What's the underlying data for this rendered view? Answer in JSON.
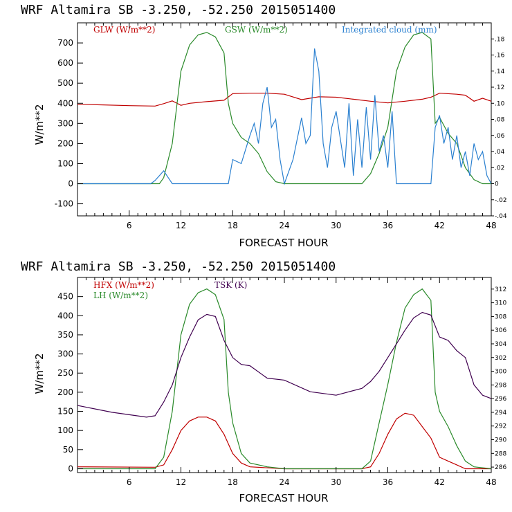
{
  "colors": {
    "red": "#c00000",
    "green": "#2a8a2a",
    "blue": "#2a80d0",
    "purple": "#400050",
    "axis": "#000000"
  },
  "chart_data": [
    {
      "type": "line",
      "title": "WRF  Altamira  SB  -3.250, -52.250  2015051400",
      "xlabel": "FORECAST HOUR",
      "ylabel": "W/m**2",
      "xlim": [
        0,
        48
      ],
      "ylim": [
        -160,
        800
      ],
      "x_ticks": [
        6,
        12,
        18,
        24,
        30,
        36,
        42,
        48
      ],
      "y_ticks": [
        -100,
        0,
        100,
        200,
        300,
        400,
        500,
        600,
        700
      ],
      "y2lim": [
        -0.04,
        0.2
      ],
      "y2_ticks": [
        -0.04,
        -0.02,
        0,
        0.02,
        0.04,
        0.06,
        0.08,
        0.1,
        0.12,
        0.14,
        0.16,
        0.18
      ],
      "y2_tick_labels": [
        "-.04",
        "-.02",
        "0",
        ".02",
        ".04",
        ".06",
        ".08",
        ".10",
        ".12",
        ".14",
        ".16",
        ".18"
      ],
      "series": [
        {
          "name": "GLW (W/m**2)",
          "axis": "left",
          "color": "#c00000",
          "x": [
            0,
            3,
            6,
            9,
            10,
            11,
            12,
            13,
            15,
            17,
            18,
            20,
            22,
            24,
            26,
            28,
            30,
            32,
            34,
            36,
            38,
            40,
            41,
            42,
            44,
            45,
            46,
            47,
            48
          ],
          "y": [
            395,
            392,
            388,
            386,
            398,
            412,
            390,
            400,
            408,
            415,
            448,
            450,
            450,
            445,
            418,
            432,
            430,
            420,
            410,
            402,
            410,
            420,
            430,
            450,
            445,
            440,
            410,
            425,
            410
          ]
        },
        {
          "name": "GSW (W/m**2)",
          "axis": "left",
          "color": "#2a8a2a",
          "x": [
            0,
            9.5,
            10,
            11,
            12,
            13,
            14,
            15,
            16,
            17,
            17.5,
            18,
            19,
            20,
            21,
            22,
            23,
            24,
            33,
            34,
            35,
            36,
            37,
            38,
            39,
            40,
            41,
            41.5,
            42,
            43,
            44,
            45,
            46,
            47,
            48
          ],
          "y": [
            0,
            0,
            30,
            200,
            560,
            690,
            740,
            752,
            730,
            650,
            400,
            300,
            230,
            200,
            150,
            60,
            10,
            0,
            0,
            50,
            150,
            280,
            560,
            680,
            740,
            752,
            720,
            300,
            330,
            250,
            200,
            80,
            20,
            0,
            0
          ]
        },
        {
          "name": "Integrated cloud (mm)",
          "axis": "right",
          "color": "#2a80d0",
          "x": [
            0,
            8.5,
            9,
            10,
            10.5,
            11,
            17.5,
            18,
            19,
            20,
            20.5,
            21,
            21.5,
            22,
            22.5,
            23,
            23.5,
            24,
            25,
            26,
            26.5,
            27,
            27.5,
            28,
            28.5,
            29,
            29.5,
            30,
            31,
            31.5,
            32,
            32.5,
            33,
            33.5,
            34,
            34.5,
            35,
            35.5,
            36,
            36.5,
            37,
            41,
            41.5,
            42,
            42.5,
            43,
            43.5,
            44,
            44.5,
            45,
            45.5,
            46,
            46.5,
            47,
            47.5,
            48
          ],
          "y": [
            0,
            0,
            0.004,
            0.016,
            0.008,
            0,
            0,
            0.03,
            0.025,
            0.06,
            0.075,
            0.05,
            0.1,
            0.12,
            0.07,
            0.08,
            0.03,
            0,
            0.03,
            0.082,
            0.05,
            0.06,
            0.168,
            0.14,
            0.05,
            0.02,
            0.07,
            0.09,
            0.02,
            0.1,
            0.01,
            0.08,
            0.02,
            0.095,
            0.03,
            0.11,
            0.04,
            0.06,
            0.02,
            0.09,
            0,
            0,
            0.07,
            0.085,
            0.05,
            0.07,
            0.03,
            0.06,
            0.02,
            0.04,
            0.01,
            0.05,
            0.03,
            0.04,
            0.01,
            0
          ]
        }
      ]
    },
    {
      "type": "line",
      "title": "WRF  Altamira  SB  -3.250, -52.250  2015051400",
      "xlabel": "FORECAST HOUR",
      "ylabel": "W/m**2",
      "xlim": [
        0,
        48
      ],
      "ylim": [
        -10,
        500
      ],
      "x_ticks": [
        6,
        12,
        18,
        24,
        30,
        36,
        42,
        48
      ],
      "y_ticks": [
        0,
        50,
        100,
        150,
        200,
        250,
        300,
        350,
        400,
        450
      ],
      "y2lim": [
        285.2,
        313.7
      ],
      "y2_ticks": [
        286,
        288,
        290,
        292,
        294,
        296,
        298,
        300,
        302,
        304,
        306,
        308,
        310,
        312
      ],
      "y2_tick_labels": [
        "286",
        "288",
        "290",
        "292",
        "294",
        "296",
        "298",
        "300",
        "302",
        "304",
        "306",
        "308",
        "310",
        "312"
      ],
      "series": [
        {
          "name": "HFX (W/m**2)",
          "axis": "left",
          "color": "#c00000",
          "x": [
            0,
            9,
            10,
            11,
            12,
            13,
            14,
            15,
            16,
            17,
            18,
            19,
            20,
            24,
            33,
            34,
            35,
            36,
            37,
            38,
            39,
            40,
            41,
            42,
            43,
            44,
            45,
            46,
            48
          ],
          "y": [
            5,
            4,
            10,
            50,
            100,
            125,
            135,
            135,
            125,
            90,
            40,
            15,
            5,
            0,
            0,
            5,
            40,
            90,
            130,
            145,
            140,
            110,
            80,
            30,
            20,
            10,
            0,
            0,
            0
          ],
          "label_y": 420
        },
        {
          "name": "LH (W/m**2)",
          "axis": "left",
          "color": "#2a8a2a",
          "x": [
            0,
            9,
            10,
            11,
            12,
            13,
            14,
            15,
            16,
            17,
            17.5,
            18,
            19,
            20,
            22,
            24,
            33,
            34,
            35,
            36,
            37,
            38,
            39,
            40,
            41,
            41.5,
            42,
            43,
            44,
            45,
            46,
            48
          ],
          "y": [
            0,
            0,
            30,
            150,
            350,
            430,
            460,
            470,
            455,
            390,
            200,
            120,
            40,
            15,
            5,
            0,
            0,
            20,
            120,
            220,
            330,
            420,
            455,
            470,
            440,
            200,
            150,
            110,
            60,
            20,
            5,
            0
          ],
          "label_y": 400
        },
        {
          "name": "TSK (K)",
          "axis": "right",
          "color": "#400050",
          "x": [
            0,
            4,
            8,
            9,
            10,
            11,
            12,
            13,
            14,
            15,
            16,
            17,
            18,
            19,
            20,
            22,
            24,
            27,
            30,
            33,
            34,
            35,
            36,
            37,
            38,
            39,
            40,
            41,
            42,
            43,
            44,
            45,
            46,
            47,
            48
          ],
          "y": [
            295.0,
            294.0,
            293.3,
            293.5,
            295.5,
            298.0,
            302.0,
            305.0,
            307.5,
            308.3,
            308.0,
            304.5,
            302.0,
            301.0,
            300.8,
            299.0,
            298.7,
            297.0,
            296.5,
            297.5,
            298.5,
            300.0,
            302.0,
            304.0,
            306.0,
            307.8,
            308.6,
            308.2,
            305.0,
            304.5,
            303.0,
            302.0,
            298.0,
            296.5,
            296.0
          ]
        }
      ]
    }
  ]
}
